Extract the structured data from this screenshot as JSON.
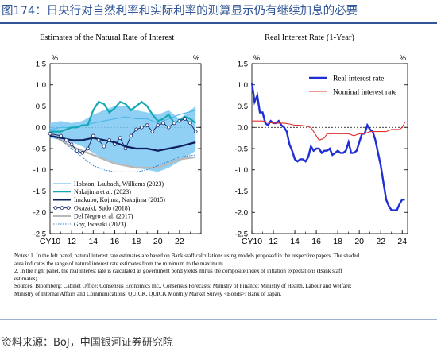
{
  "header": {
    "title": "图174：日央行对自然利率和实际利率的测算显示仍有继续加息的必要"
  },
  "chart_data": [
    {
      "type": "line",
      "title": "Estimates of the Natural Rate of Interest",
      "ylabel": "%",
      "ylim": [
        -2.5,
        1.5
      ],
      "yticks": [
        "1.5",
        "1.0",
        "0.5",
        "0.0",
        "-0.5",
        "-1.0",
        "-1.5",
        "-2.0",
        "-2.5"
      ],
      "xlim": [
        2010,
        2024
      ],
      "xticks": [
        "CY10",
        "12",
        "14",
        "16",
        "18",
        "20",
        "22"
      ],
      "xtick_values": [
        2010,
        2012,
        2014,
        2016,
        2018,
        2020,
        2022
      ],
      "legend_position": "bottom-left",
      "band": {
        "name": "",
        "x": [
          2010,
          2011,
          2012,
          2013,
          2014,
          2015,
          2016,
          2017,
          2018,
          2019,
          2020,
          2021,
          2022,
          2023.5
        ],
        "upper": [
          0.1,
          0.15,
          0.1,
          0.15,
          0.3,
          0.4,
          0.5,
          0.5,
          0.4,
          0.35,
          0.3,
          0.4,
          0.2,
          0.5
        ],
        "lower": [
          -0.25,
          -0.3,
          -0.35,
          -0.45,
          -0.6,
          -0.75,
          -0.85,
          -0.9,
          -0.95,
          -1.0,
          -1.05,
          -0.95,
          -0.8,
          -0.55
        ]
      },
      "series": [
        {
          "name": "Holston, Laubach, Williams (2023)",
          "style": "thin-sky",
          "x": [
            2010,
            2011,
            2012,
            2013,
            2014,
            2015,
            2016,
            2017,
            2018,
            2019,
            2020,
            2021,
            2022,
            2023.5
          ],
          "values": [
            -0.05,
            0.0,
            0.0,
            0.05,
            0.1,
            0.15,
            0.2,
            0.25,
            0.2,
            0.2,
            0.1,
            0.2,
            0.3,
            0.4
          ]
        },
        {
          "name": "Nakajima et al. (2023)",
          "style": "teal",
          "x": [
            2010,
            2011,
            2011.5,
            2012,
            2012.5,
            2013,
            2013.5,
            2014,
            2014.5,
            2015,
            2015.5,
            2016,
            2016.5,
            2017,
            2017.5,
            2018,
            2018.5,
            2019,
            2019.5,
            2020,
            2020.5,
            2021,
            2021.5,
            2022,
            2022.5,
            2023,
            2023.5
          ],
          "values": [
            -0.1,
            -0.1,
            -0.05,
            0.0,
            0.0,
            0.05,
            0.05,
            0.4,
            0.6,
            0.55,
            0.35,
            0.45,
            0.6,
            0.55,
            0.4,
            0.5,
            0.6,
            0.5,
            0.3,
            0.15,
            0.2,
            0.3,
            0.1,
            0.15,
            0.25,
            0.2,
            0.1
          ]
        },
        {
          "name": "Imakubo, Kojima, Nakajima (2015)",
          "style": "navy-thick",
          "x": [
            2010,
            2011,
            2012,
            2013,
            2014,
            2015,
            2016,
            2017,
            2018,
            2019,
            2020,
            2021,
            2022,
            2023.5
          ],
          "values": [
            -0.2,
            -0.25,
            -0.3,
            -0.3,
            -0.25,
            -0.3,
            -0.35,
            -0.45,
            -0.5,
            -0.5,
            -0.55,
            -0.5,
            -0.45,
            -0.35
          ]
        },
        {
          "name": "Okazaki, Sudo (2018)",
          "style": "navy-markers",
          "x": [
            2010,
            2011,
            2011.5,
            2012,
            2012.5,
            2013,
            2013.5,
            2014,
            2014.5,
            2015,
            2015.5,
            2016,
            2016.5,
            2017,
            2017.5,
            2018,
            2018.5,
            2019,
            2019.5,
            2020,
            2020.5,
            2021,
            2021.5,
            2022,
            2022.5,
            2023,
            2023.5
          ],
          "values": [
            -0.15,
            -0.2,
            -0.3,
            -0.4,
            -0.55,
            -0.6,
            -0.5,
            -0.2,
            -0.3,
            -0.45,
            -0.3,
            -0.4,
            -0.25,
            -0.5,
            -0.2,
            -0.05,
            0.0,
            0.05,
            -0.1,
            0.05,
            0.1,
            0.0,
            0.1,
            0.15,
            0.2,
            0.1,
            -0.1
          ]
        },
        {
          "name": "Del Negro et al. (2017)",
          "style": "gray-thick",
          "x": [
            2010,
            2011,
            2012,
            2013,
            2014,
            2015,
            2016,
            2017,
            2018,
            2019,
            2020,
            2021,
            2022,
            2023.5
          ],
          "values": [
            -0.15,
            -0.3,
            -0.45,
            -0.55,
            -0.65,
            -0.75,
            -0.85,
            -0.9,
            -0.95,
            -0.95,
            -0.95,
            -0.85,
            -0.75,
            -0.7
          ]
        },
        {
          "name": "Goy, Iwasaki (2023)",
          "style": "dotted",
          "x": [
            2010,
            2011,
            2012,
            2013,
            2014,
            2015,
            2016,
            2017,
            2018,
            2019,
            2020,
            2021,
            2022,
            2023.5
          ],
          "values": [
            -0.2,
            -0.3,
            -0.5,
            -0.7,
            -0.9,
            -1.0,
            -1.05,
            -1.05,
            -1.05,
            -1.0,
            -0.9,
            -0.8,
            -0.7,
            -0.65
          ]
        }
      ]
    },
    {
      "type": "line",
      "title": "Real Interest Rate (1-Year)",
      "ylabel": "%",
      "ylim": [
        -2.5,
        1.5
      ],
      "yticks": [
        "1.5",
        "1.0",
        "0.5",
        "0.0",
        "-0.5",
        "-1.0",
        "-1.5",
        "-2.0",
        "-2.5"
      ],
      "xlim": [
        2010,
        2024.5
      ],
      "xticks": [
        "CY10",
        "12",
        "14",
        "16",
        "18",
        "20",
        "22",
        "24"
      ],
      "xtick_values": [
        2010,
        2012,
        2014,
        2016,
        2018,
        2020,
        2022,
        2024
      ],
      "legend_position": "top-right",
      "series": [
        {
          "name": "Real interest rate",
          "color": "#1f2fd6",
          "x": [
            2010,
            2010.25,
            2010.5,
            2010.75,
            2011,
            2011.25,
            2011.5,
            2011.75,
            2012,
            2012.25,
            2012.5,
            2012.75,
            2013,
            2013.25,
            2013.5,
            2013.75,
            2014,
            2014.25,
            2014.5,
            2014.75,
            2015,
            2015.25,
            2015.5,
            2015.75,
            2016,
            2016.25,
            2016.5,
            2016.75,
            2017,
            2017.25,
            2017.5,
            2017.75,
            2018,
            2018.25,
            2018.5,
            2018.75,
            2019,
            2019.25,
            2019.5,
            2019.75,
            2020,
            2020.25,
            2020.5,
            2020.75,
            2021,
            2021.25,
            2021.5,
            2021.75,
            2022,
            2022.25,
            2022.5,
            2022.75,
            2023,
            2023.25,
            2023.5,
            2023.75,
            2024,
            2024.25
          ],
          "values": [
            1.05,
            0.6,
            0.75,
            0.35,
            0.35,
            0.1,
            0.05,
            0.15,
            0.1,
            0.1,
            0.15,
            0.05,
            0.0,
            -0.1,
            -0.4,
            -0.55,
            -0.75,
            -0.8,
            -0.75,
            -0.75,
            -0.8,
            -0.7,
            -0.45,
            -0.55,
            -0.5,
            -0.5,
            -0.6,
            -0.55,
            -0.55,
            -0.5,
            -0.65,
            -0.6,
            -0.55,
            -0.6,
            -0.6,
            -0.55,
            -0.35,
            -0.6,
            -0.6,
            -0.55,
            -0.35,
            -0.15,
            -0.15,
            0.05,
            -0.05,
            -0.1,
            -0.3,
            -0.6,
            -0.9,
            -1.3,
            -1.7,
            -1.85,
            -1.95,
            -1.95,
            -1.95,
            -1.8,
            -1.7,
            -1.7
          ]
        },
        {
          "name": "Nominal interest rate",
          "color": "#e03030",
          "x": [
            2010,
            2010.5,
            2011,
            2011.5,
            2012,
            2012.5,
            2013,
            2013.5,
            2014,
            2014.5,
            2015,
            2015.5,
            2016,
            2016.25,
            2016.5,
            2016.75,
            2017,
            2017.5,
            2018,
            2018.5,
            2019,
            2019.5,
            2020,
            2020.5,
            2021,
            2021.5,
            2022,
            2022.5,
            2023,
            2023.5,
            2023.75,
            2024,
            2024.25
          ],
          "values": [
            0.15,
            0.15,
            0.15,
            0.12,
            0.1,
            0.1,
            0.1,
            0.08,
            0.05,
            0.05,
            0.03,
            0.0,
            -0.2,
            -0.3,
            -0.28,
            -0.25,
            -0.15,
            -0.15,
            -0.15,
            -0.15,
            -0.15,
            -0.2,
            -0.15,
            -0.15,
            -0.1,
            -0.1,
            -0.1,
            -0.1,
            -0.05,
            -0.05,
            -0.05,
            0.0,
            0.12
          ]
        }
      ]
    }
  ],
  "notes": {
    "lines": [
      "Notes: 1. In the left panel, natural interest rate estimates are based on Bank staff calculations using models proposed in the respective papers. The shaded",
      "           area indicates the range of natural interest rate estimates from the minimum to the maximum.",
      "        2. In the right panel, the real interest rate is calculated as government bond yields minus the composite index of inflation expectations (Bank staff",
      "           estimates).",
      "Sources: Bloomberg; Cabinet Office; Consensus Economics Inc., Consensus Forecasts; Ministry of Finance; Ministry of Health, Labour and Welfare;",
      "           Ministry of Internal Affairs and Communications; QUICK, QUICK Monthly Market Survey <Bonds>; Bank of Japan."
    ]
  },
  "footer": {
    "source": "资料来源：BoJ，中国银河证券研究院"
  }
}
